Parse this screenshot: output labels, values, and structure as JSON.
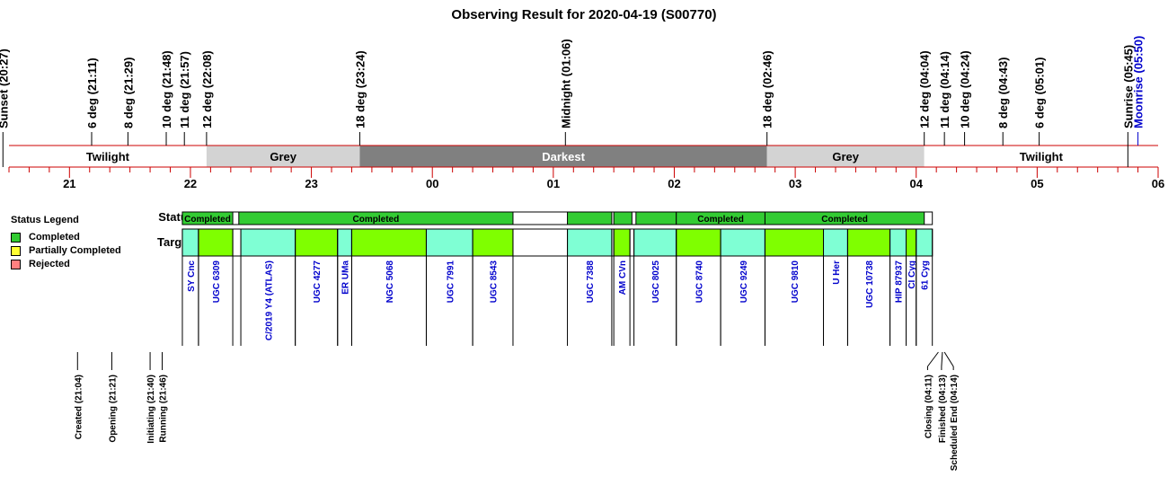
{
  "title": "Observing Result for 2020-04-19 (S00770)",
  "legend": {
    "title": "Status Legend",
    "items": [
      {
        "label": "Completed",
        "color": "#33cc33"
      },
      {
        "label": "Partially Completed",
        "color": "#ffff33"
      },
      {
        "label": "Rejected",
        "color": "#ff8080"
      }
    ]
  },
  "row_labels": {
    "status": "Status",
    "targets": "Targets"
  },
  "colors": {
    "axis": "#cc0000",
    "grey_band": "#d3d3d3",
    "darkest_band": "#808080",
    "completed": "#33cc33",
    "target_a": "#7fffd4",
    "target_b": "#7fff00",
    "target_label": "#0000cc",
    "moonrise": "#0000cc"
  },
  "chart_data": {
    "type": "timeline",
    "title": "Observing Result for 2020-04-19 (S00770)",
    "x_unit": "hours",
    "x_range": [
      "20:30",
      "06:00"
    ],
    "hour_ticks": [
      "21",
      "22",
      "23",
      "00",
      "01",
      "02",
      "03",
      "04",
      "05",
      "06"
    ],
    "top_events": [
      {
        "label": "Sunset (20:27)",
        "time": "20:27"
      },
      {
        "label": "6 deg (21:11)",
        "time": "21:11"
      },
      {
        "label": "8 deg (21:29)",
        "time": "21:29"
      },
      {
        "label": "10 deg (21:48)",
        "time": "21:48"
      },
      {
        "label": "11 deg (21:57)",
        "time": "21:57"
      },
      {
        "label": "12 deg (22:08)",
        "time": "22:08"
      },
      {
        "label": "18 deg (23:24)",
        "time": "23:24"
      },
      {
        "label": "Midnight (01:06)",
        "time": "01:06"
      },
      {
        "label": "18 deg (02:46)",
        "time": "02:46"
      },
      {
        "label": "12 deg (04:04)",
        "time": "04:04"
      },
      {
        "label": "11 deg (04:14)",
        "time": "04:14"
      },
      {
        "label": "10 deg (04:24)",
        "time": "04:24"
      },
      {
        "label": "8 deg (04:43)",
        "time": "04:43"
      },
      {
        "label": "6 deg (05:01)",
        "time": "05:01"
      },
      {
        "label": "Sunrise (05:45)",
        "time": "05:45"
      },
      {
        "label": "Moonrise (05:50)",
        "time": "05:50",
        "color": "moonrise"
      }
    ],
    "sky_bands": [
      {
        "label": "Twilight",
        "start": "20:30",
        "end": "22:08",
        "shade": "twilight"
      },
      {
        "label": "Grey",
        "start": "22:08",
        "end": "23:24",
        "shade": "grey"
      },
      {
        "label": "Darkest",
        "start": "23:24",
        "end": "02:46",
        "shade": "darkest"
      },
      {
        "label": "Grey",
        "start": "02:46",
        "end": "04:04",
        "shade": "grey"
      },
      {
        "label": "Twilight",
        "start": "04:04",
        "end": "06:00",
        "shade": "twilight"
      }
    ],
    "status_bars": [
      {
        "label": "Completed",
        "start": "21:56",
        "end": "22:21",
        "status": "completed"
      },
      {
        "label": "",
        "start": "22:24",
        "end": "00:40",
        "status": "completed"
      },
      {
        "label": "Completed",
        "start": "22:24",
        "end": "00:40",
        "status": "completed",
        "label_only": true
      },
      {
        "label": "",
        "start": "01:07",
        "end": "01:29",
        "status": "completed"
      },
      {
        "label": "",
        "start": "01:30",
        "end": "01:39",
        "status": "completed"
      },
      {
        "label": "",
        "start": "01:41",
        "end": "02:01",
        "status": "completed"
      },
      {
        "label": "Completed",
        "start": "02:01",
        "end": "02:45",
        "status": "completed"
      },
      {
        "label": "Completed",
        "start": "02:45",
        "end": "04:04",
        "status": "completed"
      }
    ],
    "targets": [
      {
        "name": "SY Cnc",
        "start": "21:56",
        "end": "22:04",
        "color": "a"
      },
      {
        "name": "UGC 6309",
        "start": "22:04",
        "end": "22:21",
        "color": "b"
      },
      {
        "name": "C/2019 Y4 (ATLAS)",
        "start": "22:25",
        "end": "22:52",
        "color": "a"
      },
      {
        "name": "UGC 4277",
        "start": "22:52",
        "end": "23:13",
        "color": "b"
      },
      {
        "name": "ER UMa",
        "start": "23:13",
        "end": "23:20",
        "color": "a"
      },
      {
        "name": "NGC 5068",
        "start": "23:20",
        "end": "23:57",
        "color": "b"
      },
      {
        "name": "UGC 7991",
        "start": "23:57",
        "end": "00:20",
        "color": "a"
      },
      {
        "name": "UGC 8543",
        "start": "00:20",
        "end": "00:40",
        "color": "b"
      },
      {
        "name": "UGC 7388",
        "start": "01:07",
        "end": "01:29",
        "color": "a"
      },
      {
        "name": "AM CVn",
        "start": "01:30",
        "end": "01:38",
        "color": "b"
      },
      {
        "name": "UGC 8025",
        "start": "01:40",
        "end": "02:01",
        "color": "a"
      },
      {
        "name": "UGC 8740",
        "start": "02:01",
        "end": "02:23",
        "color": "b"
      },
      {
        "name": "UGC 9249",
        "start": "02:23",
        "end": "02:45",
        "color": "a"
      },
      {
        "name": "UGC 9810",
        "start": "02:45",
        "end": "03:14",
        "color": "b"
      },
      {
        "name": "U Her",
        "start": "03:14",
        "end": "03:26",
        "color": "a"
      },
      {
        "name": "UGC 10738",
        "start": "03:26",
        "end": "03:47",
        "color": "b"
      },
      {
        "name": "HIP 87937",
        "start": "03:47",
        "end": "03:55",
        "color": "a"
      },
      {
        "name": "CI Cyg",
        "start": "03:55",
        "end": "04:00",
        "color": "b"
      },
      {
        "name": "61 Cyg",
        "start": "04:00",
        "end": "04:08",
        "color": "a"
      }
    ],
    "bottom_events": [
      {
        "label": "Created (21:04)",
        "time": "21:04"
      },
      {
        "label": "Opening (21:21)",
        "time": "21:21"
      },
      {
        "label": "Initiating (21:40)",
        "time": "21:40"
      },
      {
        "label": "Running (21:46)",
        "time": "21:46"
      },
      {
        "label": "Closing (04:11)",
        "time": "04:11"
      },
      {
        "label": "Finished (04:13)",
        "time": "04:13"
      },
      {
        "label": "Scheduled End (04:14)",
        "time": "04:14"
      }
    ]
  }
}
